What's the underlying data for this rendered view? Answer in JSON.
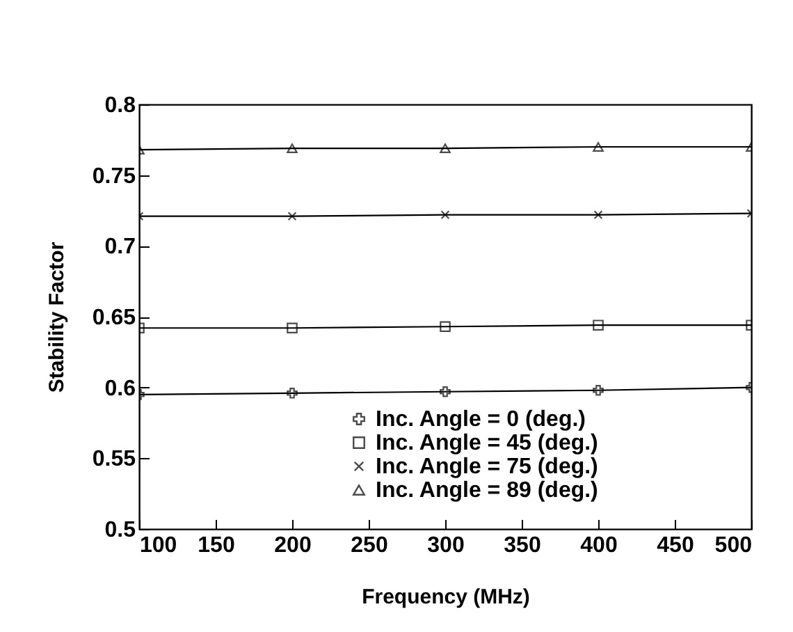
{
  "chart_data": {
    "type": "line",
    "xlabel": "Frequency (MHz)",
    "ylabel": "Stability Factor",
    "x": [
      100,
      200,
      300,
      400,
      500
    ],
    "series": [
      {
        "name": "Inc. Angle = 0 (deg.)",
        "color": "#000000",
        "marker": "cross",
        "values": [
          0.595,
          0.596,
          0.597,
          0.598,
          0.6
        ]
      },
      {
        "name": "Inc. Angle = 45 (deg.)",
        "color": "#000000",
        "marker": "square",
        "values": [
          0.642,
          0.642,
          0.643,
          0.644,
          0.644
        ]
      },
      {
        "name": "Inc. Angle = 75 (deg.)",
        "color": "#000000",
        "marker": "x",
        "values": [
          0.721,
          0.721,
          0.722,
          0.722,
          0.723
        ]
      },
      {
        "name": "Inc. Angle = 89 (deg.)",
        "color": "#000000",
        "marker": "triangle",
        "values": [
          0.768,
          0.769,
          0.769,
          0.77,
          0.77
        ]
      }
    ],
    "xlim": [
      100,
      500
    ],
    "xticks": [
      100,
      150,
      200,
      250,
      300,
      350,
      400,
      450,
      500
    ],
    "ylim": [
      0.5,
      0.8
    ],
    "yticks": [
      0.5,
      0.55,
      0.6,
      0.65,
      0.7,
      0.75,
      0.8
    ],
    "legend": "bottom",
    "grid": false,
    "line_style": "solid"
  }
}
